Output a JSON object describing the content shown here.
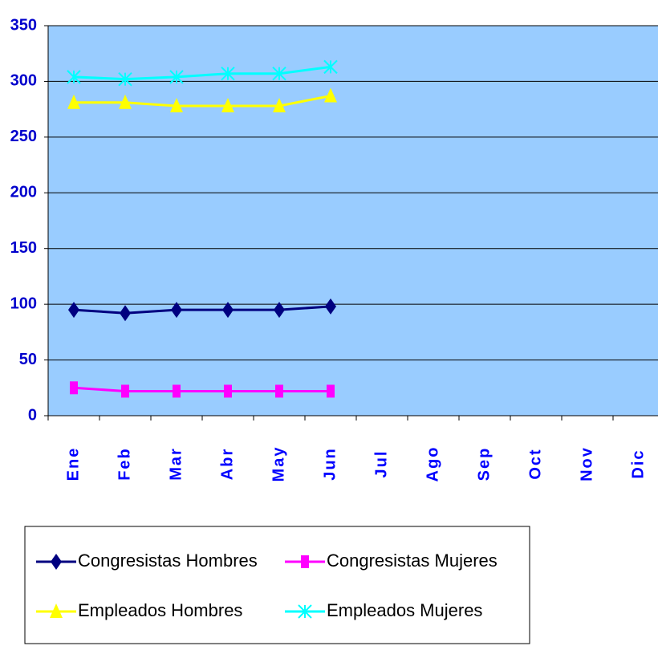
{
  "chart_data": {
    "type": "line",
    "categories": [
      "Ene",
      "Feb",
      "Mar",
      "Abr",
      "May",
      "Jun",
      "Jul",
      "Ago",
      "Sep",
      "Oct",
      "Nov",
      "Dic"
    ],
    "series": [
      {
        "name": "Congresistas Hombres",
        "color": "#000080",
        "marker": "diamond",
        "values": [
          95,
          92,
          95,
          95,
          95,
          98,
          null,
          null,
          null,
          null,
          null,
          null
        ]
      },
      {
        "name": "Congresistas Mujeres",
        "color": "#ff00ff",
        "marker": "square",
        "values": [
          25,
          22,
          22,
          22,
          22,
          22,
          null,
          null,
          null,
          null,
          null,
          null
        ]
      },
      {
        "name": "Empleados Hombres",
        "color": "#ffff00",
        "marker": "triangle",
        "values": [
          281,
          281,
          278,
          278,
          278,
          287,
          null,
          null,
          null,
          null,
          null,
          null
        ]
      },
      {
        "name": "Empleados Mujeres",
        "color": "#00ffff",
        "marker": "star",
        "values": [
          304,
          302,
          304,
          307,
          307,
          313,
          null,
          null,
          null,
          null,
          null,
          null
        ]
      }
    ],
    "ylim": [
      0,
      350
    ],
    "yticks": [
      0,
      50,
      100,
      150,
      200,
      250,
      300,
      350
    ],
    "grid": true,
    "legend": "bottom"
  }
}
